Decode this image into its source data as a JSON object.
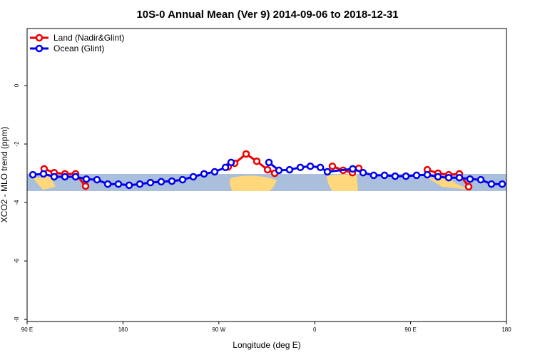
{
  "chart_data": {
    "type": "line",
    "title": "10S-0 Annual Mean (Ver 9)   2014-09-06 to 2018-12-31",
    "xlabel": "Longitude (deg E)",
    "ylabel": "XCO2 - MLO trend (ppm)",
    "xlim": [
      90,
      540
    ],
    "ylim": [
      -8.07,
      1.95
    ],
    "xticks": [
      {
        "value": 90,
        "label": "90 E"
      },
      {
        "value": 180,
        "label": "180"
      },
      {
        "value": 270,
        "label": "90 W"
      },
      {
        "value": 360,
        "label": "0"
      },
      {
        "value": 450,
        "label": "90 E"
      },
      {
        "value": 540,
        "label": "180"
      }
    ],
    "yticks": [
      -8,
      -6,
      -4,
      -2,
      0
    ],
    "legend": "top-left",
    "series": [
      {
        "name": "Land (Nadir&Glint)",
        "color": "#ee0000",
        "x": [
          106,
          115.4,
          125.5,
          135.5,
          144.9,
          200,
          278.8,
          284.9,
          295.6,
          305.6,
          315.7,
          322.4,
          350,
          376.6,
          386.7,
          395.4,
          401.4,
          430,
          465.7,
          475.7,
          485.8,
          495.8,
          504.5
        ],
        "values": [
          -2.85,
          -2.98,
          -3.02,
          -3.02,
          -3.44,
          null,
          -2.78,
          -2.66,
          -2.34,
          -2.59,
          -2.88,
          -3.0,
          null,
          -2.76,
          -2.9,
          -2.98,
          -2.83,
          null,
          -2.88,
          -3.0,
          -3.05,
          -3.02,
          -3.46
        ]
      },
      {
        "name": "Ocean (Glint)",
        "color": "#0000ee",
        "x": [
          95.4,
          105.4,
          115.4,
          125.5,
          135.5,
          145.6,
          155.6,
          165.7,
          175.7,
          185.8,
          195.8,
          205.8,
          215.9,
          225.9,
          236,
          246,
          256.1,
          266.1,
          276.2,
          281.5,
          300,
          317,
          326.4,
          336.4,
          346.5,
          355.9,
          365.3,
          371.9,
          395.7,
          405.4,
          415.4,
          425.5,
          435.5,
          445.6,
          455.6,
          465.7,
          475.7,
          485.8,
          495.8,
          505.8,
          515.9,
          525.9,
          536
        ],
        "values": [
          -3.05,
          -3.02,
          -3.12,
          -3.12,
          -3.12,
          -3.2,
          -3.22,
          -3.37,
          -3.37,
          -3.41,
          -3.37,
          -3.32,
          -3.29,
          -3.27,
          -3.22,
          -3.12,
          -3.02,
          -2.95,
          -2.8,
          -2.63,
          null,
          -2.63,
          -2.9,
          -2.88,
          -2.8,
          -2.76,
          -2.8,
          -2.95,
          -2.85,
          -2.98,
          -3.07,
          -3.07,
          -3.1,
          -3.1,
          -3.07,
          -3.05,
          -3.12,
          -3.15,
          -3.15,
          -3.2,
          -3.22,
          -3.37,
          -3.37
        ]
      }
    ]
  }
}
